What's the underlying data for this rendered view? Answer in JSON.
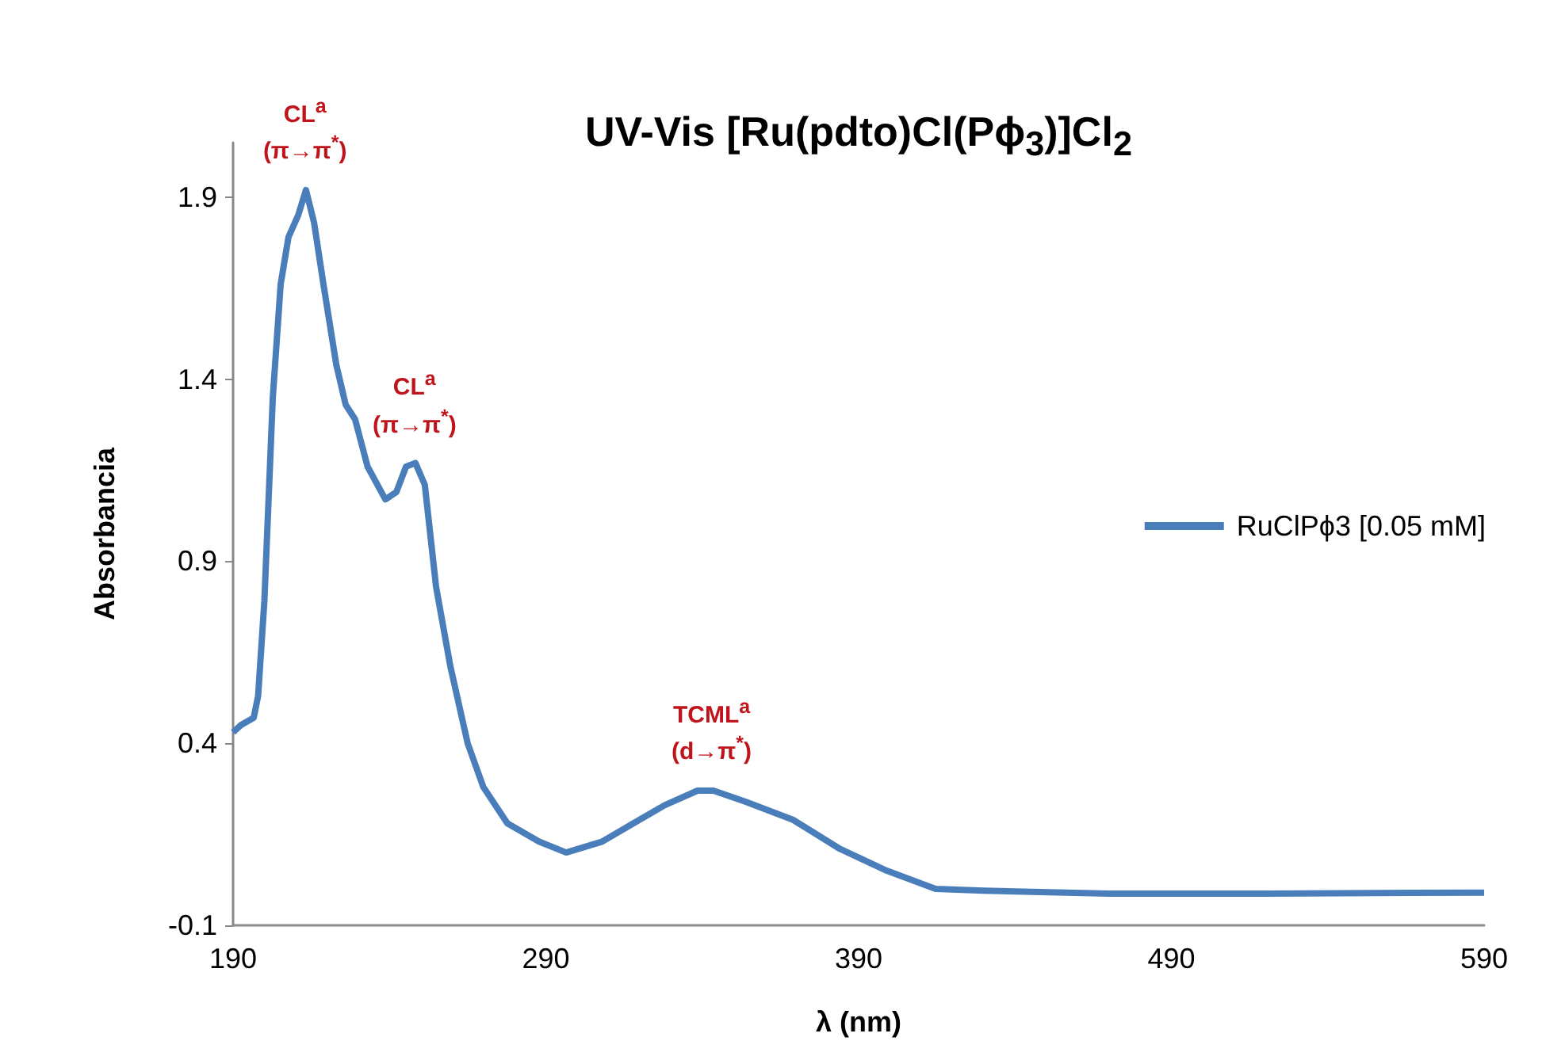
{
  "chart_data": {
    "type": "line",
    "title": "UV-Vis [Ru(pdto)Cl(Pϕ$_{3}$)]Cl$_{2}$",
    "xlabel": "λ (nm)",
    "ylabel": "Absorbancia",
    "annotations": [
      {
        "text": "CL$^{a}$\n(π→π$^{*}$)",
        "x": 213,
        "y": 1.92
      },
      {
        "text": "CL$^{a}$\n(π→π$^{*}$)",
        "x": 248,
        "y": 1.17
      },
      {
        "text": "TCML$^{a}$\n(d→π$^{*}$)",
        "x": 343,
        "y": 0.27
      }
    ],
    "series": [
      {
        "name": "RuClPϕ3 [0.05 mM]",
        "color": "#4a7ebb",
        "x": [
          190,
          192.5,
          196.6,
          198,
          200,
          202.7,
          205.2,
          207.7,
          210.8,
          213.3,
          215.9,
          218.9,
          223,
          226,
          229,
          233,
          238.7,
          242.2,
          245.3,
          248.3,
          251.3,
          254.9,
          259.5,
          265,
          270,
          277.7,
          287.8,
          296.5,
          308,
          318,
          328,
          338.5,
          343.6,
          353.7,
          369,
          384,
          399,
          414.6,
          430,
          470,
          521,
          590
        ],
        "values": [
          0.43,
          0.45,
          0.47,
          0.53,
          0.79,
          1.35,
          1.66,
          1.79,
          1.85,
          1.92,
          1.83,
          1.66,
          1.44,
          1.33,
          1.29,
          1.16,
          1.07,
          1.09,
          1.16,
          1.17,
          1.11,
          0.83,
          0.61,
          0.4,
          0.28,
          0.18,
          0.13,
          0.1,
          0.13,
          0.18,
          0.23,
          0.27,
          0.27,
          0.24,
          0.19,
          0.11,
          0.05,
          0,
          -0.005,
          -0.013,
          -0.013,
          -0.01
        ]
      }
    ],
    "xlim": [
      190,
      590
    ],
    "xticks": [
      190,
      290,
      390,
      490,
      590
    ],
    "ylim": [
      -0.1,
      2.05
    ],
    "yticks": [
      -0.1,
      0.4,
      0.9,
      1.4,
      1.9
    ],
    "grid": false,
    "legend": "right",
    "marker": "none",
    "line_style": "solid"
  }
}
